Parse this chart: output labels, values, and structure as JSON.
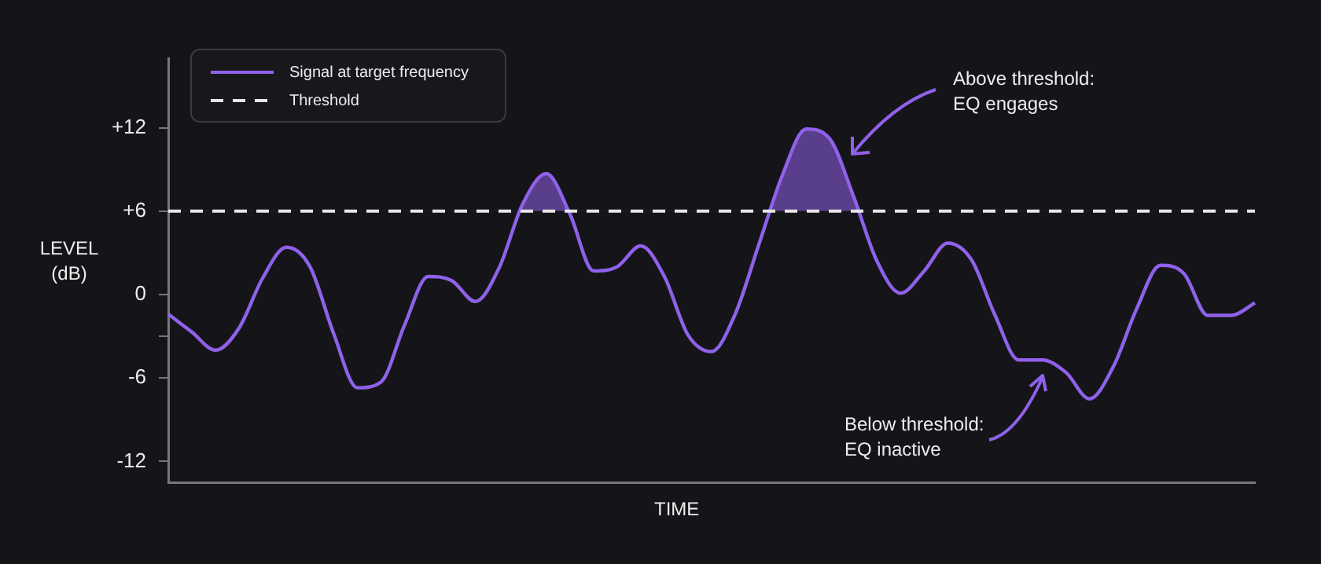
{
  "chart_data": {
    "type": "line",
    "xlabel": "TIME",
    "ylabel": "LEVEL\n(dB)",
    "categories": [
      null,
      null,
      null,
      null,
      null,
      null,
      null,
      null,
      null,
      null,
      null,
      null,
      null,
      null,
      null,
      null,
      null,
      null,
      null,
      null,
      null,
      null,
      null,
      null,
      null,
      null,
      null,
      null,
      null,
      null,
      null,
      null,
      null,
      null,
      null,
      null,
      null,
      null,
      null,
      null,
      null,
      null,
      null,
      null,
      null,
      null,
      null
    ],
    "series": [
      {
        "name": "Signal at target frequency",
        "color": "#9061ea",
        "values": [
          -1.4,
          -2.7,
          -4.0,
          -2.4,
          1.2,
          3.4,
          2.0,
          -2.8,
          -6.7,
          -6.3,
          -2.2,
          1.3,
          1.0,
          -0.5,
          1.9,
          6.5,
          8.7,
          5.8,
          1.7,
          2.0,
          3.5,
          1.3,
          -2.9,
          -4.1,
          -1.4,
          3.6,
          8.6,
          11.9,
          11.2,
          7.1,
          2.4,
          0.1,
          1.7,
          3.7,
          2.5,
          -1.5,
          -4.7,
          -4.7,
          -5.6,
          -7.5,
          -5.2,
          -1.0,
          2.1,
          1.5,
          -1.5,
          -1.5,
          -0.6
        ]
      }
    ],
    "ref_lines": [
      {
        "axis": "y",
        "value": 6,
        "label": "Threshold",
        "color": "#e6e6e6",
        "line_style": "dashed"
      }
    ],
    "ylim": [
      -13.5,
      17
    ],
    "yticks": [
      {
        "value": -12,
        "label": "-12"
      },
      {
        "value": -6,
        "label": "-6"
      },
      {
        "value": -3,
        "label": null
      },
      {
        "value": 0,
        "label": "0"
      },
      {
        "value": 6,
        "label": "+6"
      },
      {
        "value": 12,
        "label": "+12"
      }
    ],
    "annotations": [
      "Above threshold:\nEQ engages",
      "Below threshold:\nEQ inactive"
    ],
    "legend": "top left",
    "marker": "none",
    "line_style": "solid"
  }
}
